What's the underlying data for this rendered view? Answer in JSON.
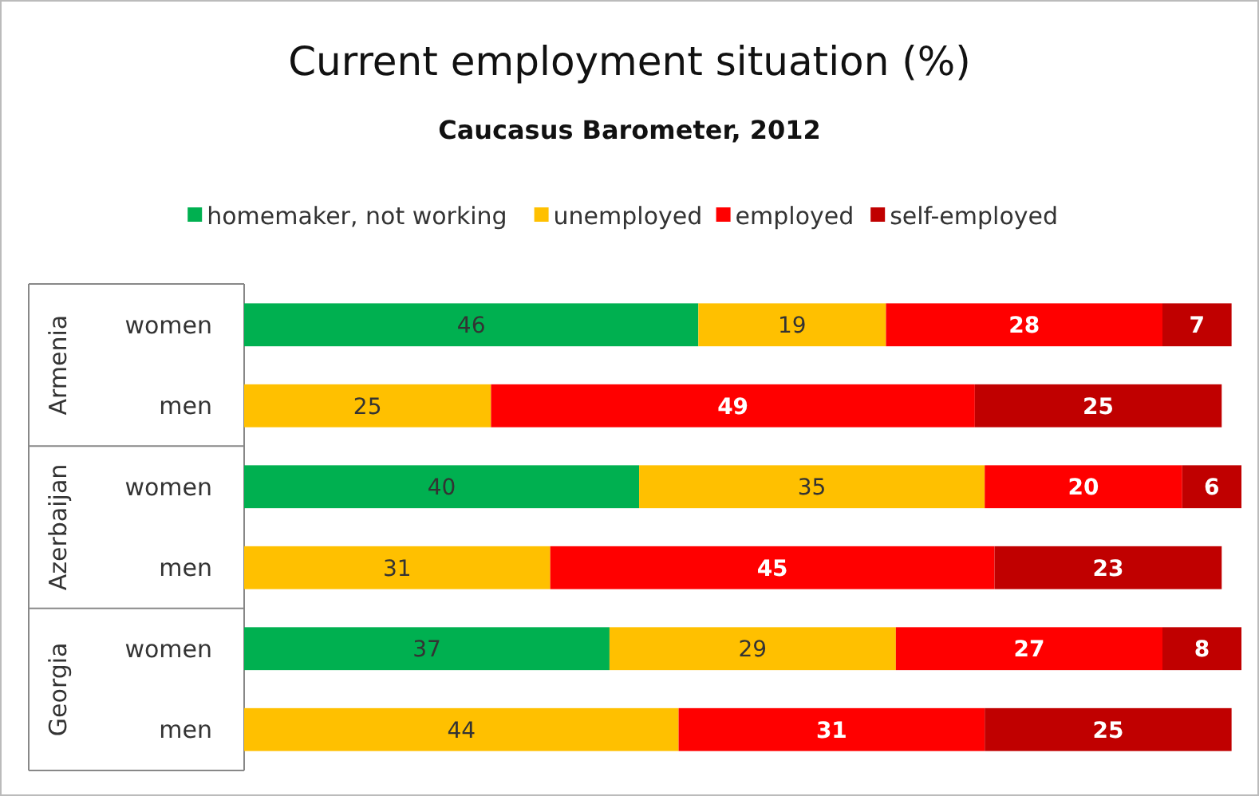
{
  "chart_data": {
    "type": "bar",
    "orientation": "horizontal",
    "stacked": true,
    "title": "Current employment  situation  (%)",
    "subtitle": "Caucasus Barometer, 2012",
    "categories": [
      "women",
      "men",
      "women",
      "men",
      "women",
      "men"
    ],
    "series": [
      {
        "name": "homemaker, not working",
        "color": "#00b050",
        "values": [
          46,
          null,
          40,
          null,
          37,
          null
        ]
      },
      {
        "name": "unemployed",
        "color": "#ffc000",
        "values": [
          19,
          25,
          35,
          31,
          29,
          44
        ]
      },
      {
        "name": "employed",
        "color": "#ff0000",
        "values": [
          28,
          49,
          20,
          45,
          27,
          31
        ]
      },
      {
        "name": "self-employed",
        "color": "#c00000",
        "values": [
          7,
          25,
          6,
          23,
          8,
          25
        ]
      }
    ],
    "annotations": [
      "Armenia",
      "Azerbaijan",
      "Georgia"
    ],
    "data_labels": true,
    "legend": "top"
  }
}
